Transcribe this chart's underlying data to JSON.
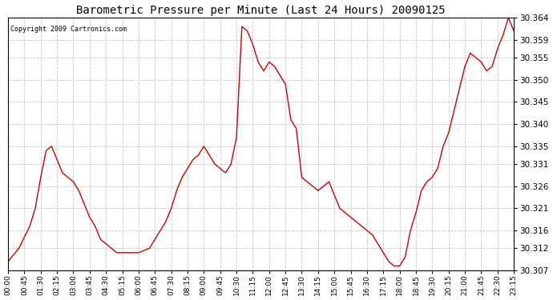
{
  "title": "Barometric Pressure per Minute (Last 24 Hours) 20090125",
  "copyright": "Copyright 2009 Cartronics.com",
  "line_color": "#cc0000",
  "bg_color": "#ffffff",
  "plot_bg_color": "#ffffff",
  "grid_color": "#c8c8c8",
  "ylim": [
    30.307,
    30.364
  ],
  "yticks": [
    30.307,
    30.312,
    30.316,
    30.321,
    30.326,
    30.331,
    30.335,
    30.34,
    30.345,
    30.35,
    30.355,
    30.359,
    30.364
  ],
  "xtick_labels": [
    "00:00",
    "00:45",
    "01:30",
    "02:15",
    "03:00",
    "03:45",
    "04:30",
    "05:15",
    "06:00",
    "06:45",
    "07:30",
    "08:15",
    "09:00",
    "09:45",
    "10:30",
    "11:15",
    "12:00",
    "12:45",
    "13:30",
    "14:15",
    "15:00",
    "15:45",
    "16:30",
    "17:15",
    "18:00",
    "18:45",
    "19:30",
    "20:15",
    "21:00",
    "21:45",
    "22:30",
    "23:15"
  ],
  "key_times": [
    0,
    30,
    60,
    75,
    90,
    105,
    120,
    135,
    150,
    165,
    180,
    195,
    210,
    225,
    240,
    255,
    270,
    285,
    300,
    315,
    330,
    360,
    390,
    405,
    420,
    435,
    450,
    465,
    480,
    495,
    510,
    525,
    540,
    555,
    570,
    585,
    600,
    615,
    630,
    645,
    660,
    675,
    690,
    705,
    720,
    735,
    750,
    765,
    780,
    795,
    810,
    825,
    840,
    855,
    870,
    885,
    900,
    915,
    930,
    945,
    960,
    975,
    990,
    1005,
    1020,
    1035,
    1050,
    1065,
    1080,
    1095,
    1110,
    1125,
    1140,
    1155,
    1170,
    1185,
    1200,
    1215,
    1230,
    1245,
    1260,
    1275,
    1290,
    1305,
    1320,
    1335,
    1350,
    1365,
    1380,
    1395
  ],
  "key_values": [
    30.309,
    30.312,
    30.317,
    30.321,
    30.328,
    30.334,
    30.335,
    30.332,
    30.329,
    30.328,
    30.327,
    30.325,
    30.322,
    30.319,
    30.317,
    30.314,
    30.313,
    30.312,
    30.311,
    30.311,
    30.311,
    30.311,
    30.312,
    30.314,
    30.316,
    30.318,
    30.321,
    30.325,
    30.328,
    30.33,
    30.332,
    30.333,
    30.335,
    30.333,
    30.331,
    30.33,
    30.329,
    30.331,
    30.337,
    30.362,
    30.361,
    30.358,
    30.354,
    30.352,
    30.354,
    30.353,
    30.351,
    30.349,
    30.341,
    30.339,
    30.328,
    30.327,
    30.326,
    30.325,
    30.326,
    30.327,
    30.324,
    30.321,
    30.32,
    30.319,
    30.318,
    30.317,
    30.316,
    30.315,
    30.313,
    30.311,
    30.309,
    30.308,
    30.308,
    30.31,
    30.316,
    30.32,
    30.325,
    30.327,
    30.328,
    30.33,
    30.335,
    30.338,
    30.343,
    30.348,
    30.353,
    30.356,
    30.355,
    30.354,
    30.352,
    30.353,
    30.357,
    30.36,
    30.364,
    30.361
  ]
}
